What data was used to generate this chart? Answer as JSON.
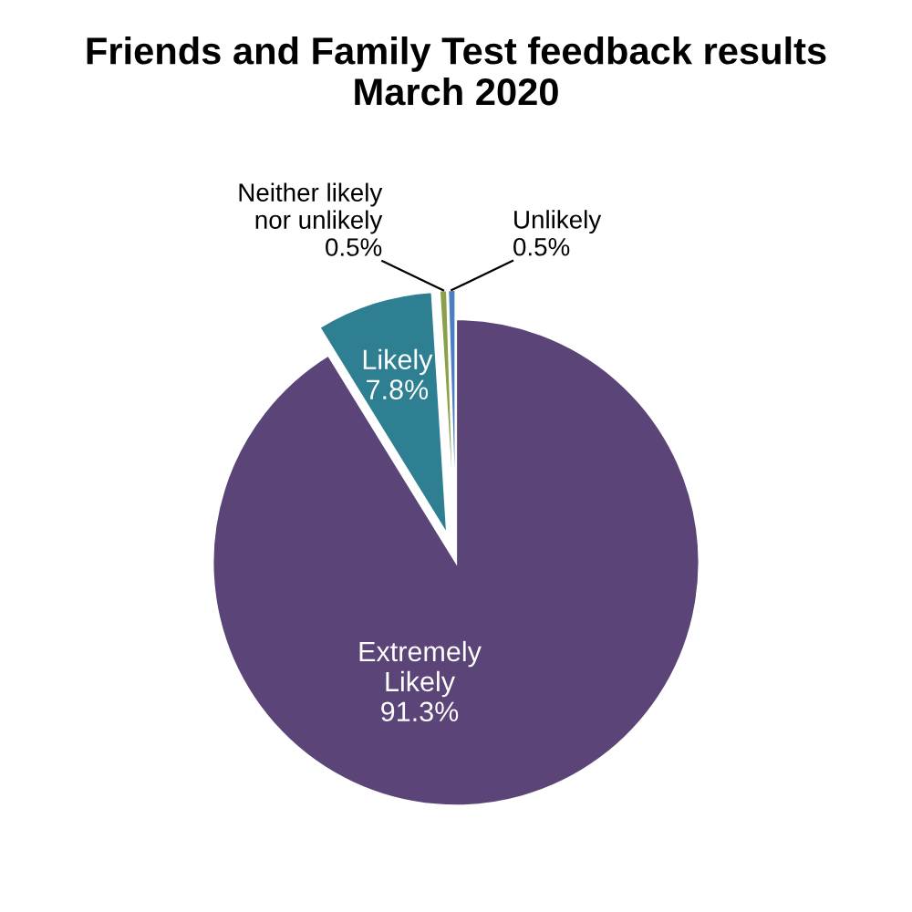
{
  "chart_data": {
    "type": "pie",
    "title": "Friends and Family Test feedback results\nMarch 2020",
    "categories": [
      "Extremely Likely",
      "Likely",
      "Neither likely nor unlikely",
      "Unlikely"
    ],
    "values": [
      91.3,
      7.8,
      0.5,
      0.5
    ],
    "value_labels": [
      "91.3%",
      "7.8%",
      "0.5%",
      "0.5%"
    ],
    "colors": [
      "#5b4478",
      "#2e7f92",
      "#8aa04a",
      "#4a7fc0"
    ],
    "legend": false
  }
}
